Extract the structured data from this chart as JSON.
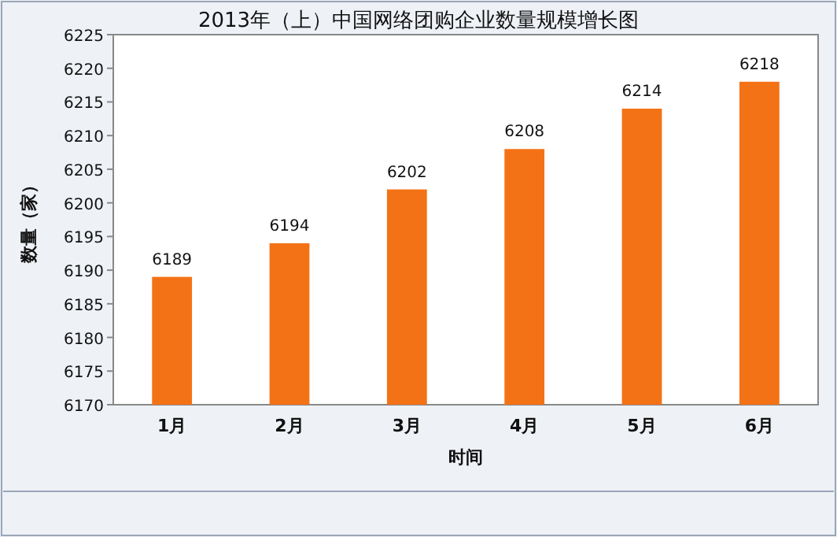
{
  "chart_data": {
    "type": "bar",
    "title": "2013年（上）中国网络团购企业数量规模增长图",
    "xlabel": "时间",
    "ylabel": "数量（家）",
    "categories": [
      "1月",
      "2月",
      "3月",
      "4月",
      "5月",
      "6月"
    ],
    "values": [
      6189,
      6194,
      6202,
      6208,
      6214,
      6218
    ],
    "color": "#f47216",
    "ylim": [
      6170,
      6225
    ],
    "yticks": [
      6170,
      6175,
      6180,
      6185,
      6190,
      6195,
      6200,
      6205,
      6210,
      6215,
      6220,
      6225
    ],
    "data_labels": true
  }
}
